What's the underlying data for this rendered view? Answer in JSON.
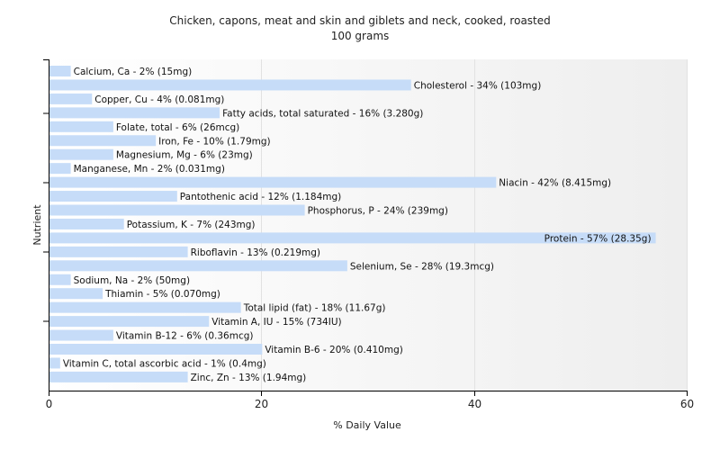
{
  "chart_data": {
    "type": "bar",
    "orientation": "horizontal",
    "title": "Chicken, capons, meat and skin and giblets and neck, cooked, roasted",
    "subtitle": "100 grams",
    "xlabel": "% Daily Value",
    "ylabel": "Nutrient",
    "xlim": [
      0,
      60
    ],
    "xticks": [
      "0",
      "20",
      "40",
      "60"
    ],
    "grid": true,
    "bar_color": "#c6dcf8",
    "categories": [
      "Calcium, Ca",
      "Cholesterol",
      "Copper, Cu",
      "Fatty acids, total saturated",
      "Folate, total",
      "Iron, Fe",
      "Magnesium, Mg",
      "Manganese, Mn",
      "Niacin",
      "Pantothenic acid",
      "Phosphorus, P",
      "Potassium, K",
      "Protein",
      "Riboflavin",
      "Selenium, Se",
      "Sodium, Na",
      "Thiamin",
      "Total lipid (fat)",
      "Vitamin A, IU",
      "Vitamin B-12",
      "Vitamin B-6",
      "Vitamin C, total ascorbic acid",
      "Zinc, Zn"
    ],
    "values": [
      2,
      34,
      4,
      16,
      6,
      10,
      6,
      2,
      42,
      12,
      24,
      7,
      57,
      13,
      28,
      2,
      5,
      18,
      15,
      6,
      20,
      1,
      13
    ],
    "labels": [
      "Calcium, Ca - 2% (15mg)",
      "Cholesterol - 34% (103mg)",
      "Copper, Cu - 4% (0.081mg)",
      "Fatty acids, total saturated - 16% (3.280g)",
      "Folate, total - 6% (26mcg)",
      "Iron, Fe - 10% (1.79mg)",
      "Magnesium, Mg - 6% (23mg)",
      "Manganese, Mn - 2% (0.031mg)",
      "Niacin - 42% (8.415mg)",
      "Pantothenic acid - 12% (1.184mg)",
      "Phosphorus, P - 24% (239mg)",
      "Potassium, K - 7% (243mg)",
      "Protein - 57% (28.35g)",
      "Riboflavin - 13% (0.219mg)",
      "Selenium, Se - 28% (19.3mcg)",
      "Sodium, Na - 2% (50mg)",
      "Thiamin - 5% (0.070mg)",
      "Total lipid (fat) - 18% (11.67g)",
      "Vitamin A, IU - 15% (734IU)",
      "Vitamin B-12 - 6% (0.36mcg)",
      "Vitamin B-6 - 20% (0.410mg)",
      "Vitamin C, total ascorbic acid - 1% (0.4mg)",
      "Zinc, Zn - 13% (1.94mg)"
    ]
  }
}
